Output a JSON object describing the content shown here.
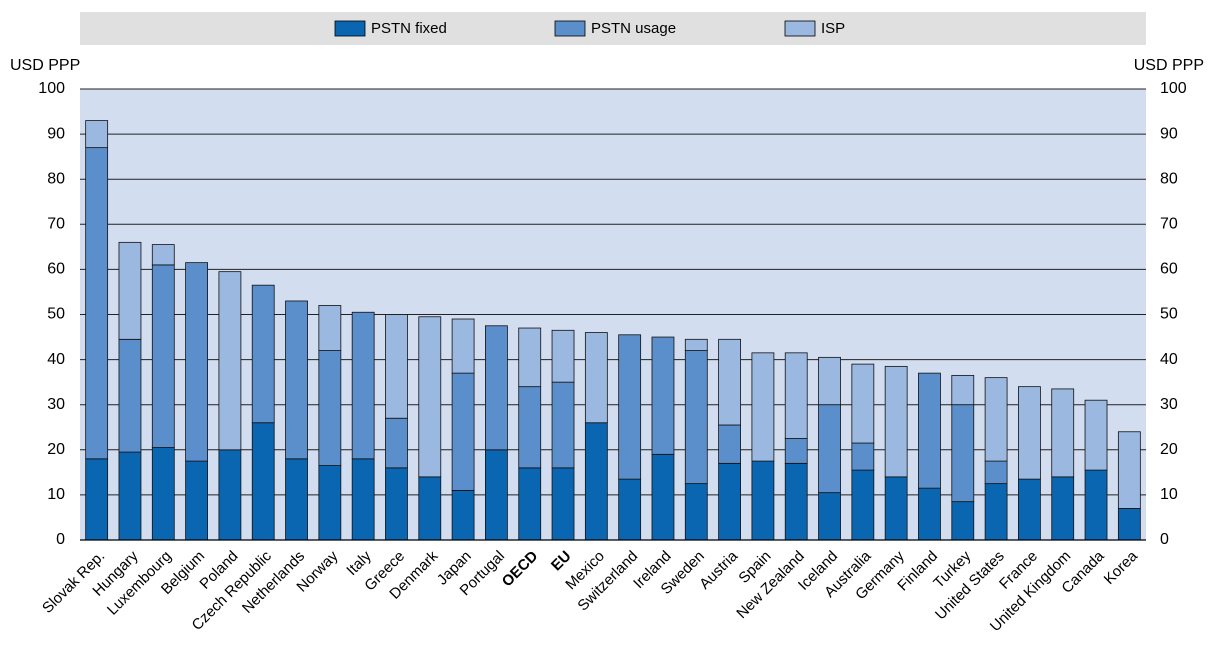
{
  "chart_data": {
    "type": "stacked_bar",
    "y_label": "USD PPP",
    "categories": [
      "Slovak Rep.",
      "Hungary",
      "Luxembourg",
      "Belgium",
      "Poland",
      "Czech Republic",
      "Netherlands",
      "Norway",
      "Italy",
      "Greece",
      "Denmark",
      "Japan",
      "Portugal",
      "OECD",
      "EU",
      "Mexico",
      "Switzerland",
      "Ireland",
      "Sweden",
      "Austria",
      "Spain",
      "New Zealand",
      "Iceland",
      "Australia",
      "Germany",
      "Finland",
      "Turkey",
      "United States",
      "France",
      "United Kingdom",
      "Canada",
      "Korea"
    ],
    "highlight_categories": [
      "OECD",
      "EU"
    ],
    "series": [
      {
        "name": "PSTN fixed",
        "color": "#0a66b0",
        "values": [
          18,
          19.5,
          20.5,
          17.5,
          20,
          26,
          18,
          16.5,
          18,
          16,
          14,
          11,
          20,
          16,
          16,
          26,
          13.5,
          19,
          12.5,
          17,
          17.5,
          17,
          10.5,
          15.5,
          14,
          11.5,
          8.5,
          12.5,
          13.5,
          14,
          15.5,
          7
        ]
      },
      {
        "name": "PSTN usage",
        "color": "#5b8fcb",
        "values": [
          69,
          25,
          40.5,
          44,
          0,
          30.5,
          35,
          25.5,
          32.5,
          11,
          0,
          26,
          27.5,
          18,
          19,
          0,
          32,
          26,
          29.5,
          8.5,
          0,
          5.5,
          19.5,
          6,
          0,
          25.5,
          21.5,
          5,
          0,
          0,
          0,
          0
        ]
      },
      {
        "name": "ISP",
        "color": "#9ab8e0",
        "values": [
          6,
          21.5,
          4.5,
          0,
          39.5,
          0,
          0,
          10,
          0,
          23,
          35.5,
          12,
          0,
          13,
          11.5,
          20,
          0,
          0,
          2.5,
          19,
          24,
          19,
          10.5,
          17.5,
          24.5,
          0,
          6.5,
          18.5,
          20.5,
          19.5,
          15.5,
          17
        ]
      }
    ],
    "ylim": [
      0,
      100
    ],
    "yticks": [
      0,
      10,
      20,
      30,
      40,
      50,
      60,
      70,
      80,
      90,
      100
    ],
    "grid": true,
    "legend": "top",
    "plot_background": "#d3ddf0",
    "legend_background": "#e0e0e0"
  }
}
